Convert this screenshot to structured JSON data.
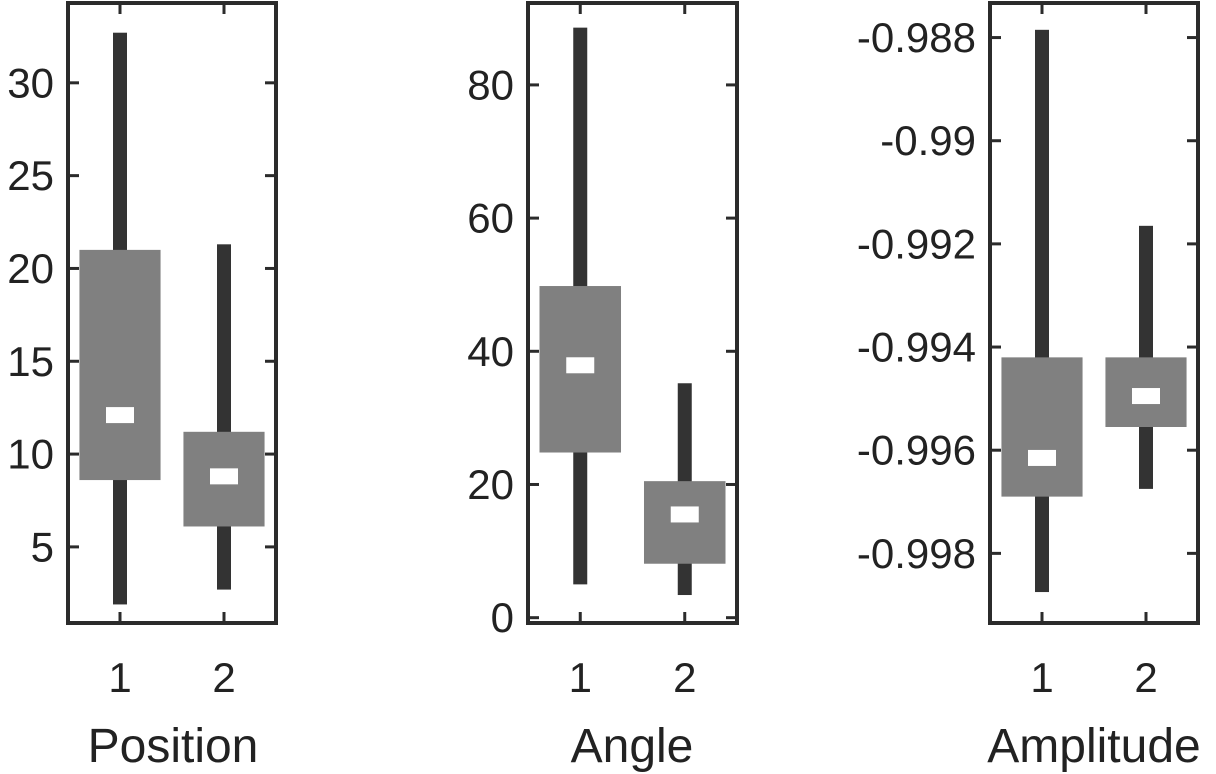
{
  "chart_data": [
    {
      "type": "boxplot",
      "xlabel": "Position",
      "categories": [
        "1",
        "2"
      ],
      "ylim": [
        0.9,
        34.3
      ],
      "yticks": [
        5,
        10,
        15,
        20,
        25,
        30
      ],
      "ytick_labels": [
        "5",
        "10",
        "15",
        "20",
        "25",
        "30"
      ],
      "boxes": [
        {
          "whisker_low": 1.9,
          "q1": 8.6,
          "median": 12.1,
          "q3": 21.0,
          "whisker_high": 32.7
        },
        {
          "whisker_low": 2.7,
          "q1": 6.1,
          "median": 8.8,
          "q3": 11.2,
          "whisker_high": 21.3
        }
      ]
    },
    {
      "type": "boxplot",
      "xlabel": "Angle",
      "categories": [
        "1",
        "2"
      ],
      "ylim": [
        -0.8,
        92.3
      ],
      "yticks": [
        0,
        20,
        40,
        60,
        80
      ],
      "ytick_labels": [
        "0",
        "20",
        "40",
        "60",
        "80"
      ],
      "boxes": [
        {
          "whisker_low": 5.0,
          "q1": 24.8,
          "median": 37.9,
          "q3": 49.8,
          "whisker_high": 88.6
        },
        {
          "whisker_low": 3.4,
          "q1": 8.1,
          "median": 15.5,
          "q3": 20.5,
          "whisker_high": 35.2
        }
      ]
    },
    {
      "type": "boxplot",
      "xlabel": "Amplitude",
      "categories": [
        "1",
        "2"
      ],
      "ylim": [
        -0.99935,
        -0.98733
      ],
      "yticks": [
        -0.998,
        -0.996,
        -0.994,
        -0.992,
        -0.99,
        -0.988
      ],
      "ytick_labels": [
        "-0.998",
        "-0.996",
        "-0.994",
        "-0.992",
        "-0.99",
        "-0.988"
      ],
      "boxes": [
        {
          "whisker_low": -0.99875,
          "q1": -0.9969,
          "median": -0.99615,
          "q3": -0.9942,
          "whisker_high": -0.98785
        },
        {
          "whisker_low": -0.99675,
          "q1": -0.99555,
          "median": -0.99495,
          "q3": -0.9942,
          "whisker_high": -0.99165
        }
      ]
    }
  ]
}
